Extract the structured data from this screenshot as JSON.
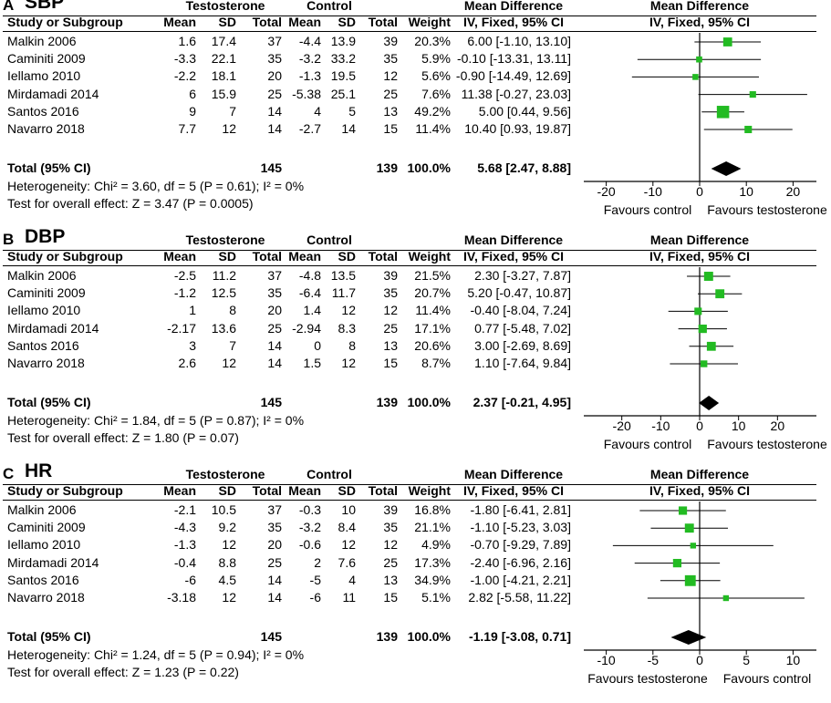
{
  "headers": {
    "study": "Study or Subgroup",
    "mean": "Mean",
    "sd": "SD",
    "total": "Total",
    "weight": "Weight",
    "effect_header": "Mean Difference",
    "method": "IV, Fixed, 95% CI",
    "group1": "Testosterone",
    "group2": "Control"
  },
  "chart_data": [
    {
      "type": "forest",
      "letter": "A",
      "title": "SBP",
      "xlim": [
        -25,
        25
      ],
      "ticks": [
        "-20",
        "-10",
        "0",
        "10",
        "20"
      ],
      "tick_values": [
        -20,
        -10,
        0,
        10,
        20
      ],
      "xlabel_left": "Favours control",
      "xlabel_right": "Favours testosterone",
      "studies": [
        {
          "name": "Malkin 2006",
          "t_mean": "1.6",
          "t_sd": "17.4",
          "t_total": "37",
          "c_mean": "-4.4",
          "c_sd": "13.9",
          "c_total": "39",
          "weight": "20.3%",
          "ci_text": "6.00 [-1.10, 13.10]",
          "md": 6.0,
          "lo": -1.1,
          "hi": 13.1,
          "w": 20.3
        },
        {
          "name": "Caminiti 2009",
          "t_mean": "-3.3",
          "t_sd": "22.1",
          "t_total": "35",
          "c_mean": "-3.2",
          "c_sd": "33.2",
          "c_total": "35",
          "weight": "5.9%",
          "ci_text": "-0.10 [-13.31, 13.11]",
          "md": -0.1,
          "lo": -13.31,
          "hi": 13.11,
          "w": 5.9
        },
        {
          "name": "Iellamo 2010",
          "t_mean": "-2.2",
          "t_sd": "18.1",
          "t_total": "20",
          "c_mean": "-1.3",
          "c_sd": "19.5",
          "c_total": "12",
          "weight": "5.6%",
          "ci_text": "-0.90 [-14.49, 12.69]",
          "md": -0.9,
          "lo": -14.49,
          "hi": 12.69,
          "w": 5.6
        },
        {
          "name": "Mirdamadi 2014",
          "t_mean": "6",
          "t_sd": "15.9",
          "t_total": "25",
          "c_mean": "-5.38",
          "c_sd": "25.1",
          "c_total": "25",
          "weight": "7.6%",
          "ci_text": "11.38 [-0.27, 23.03]",
          "md": 11.38,
          "lo": -0.27,
          "hi": 23.03,
          "w": 7.6
        },
        {
          "name": "Santos 2016",
          "t_mean": "9",
          "t_sd": "7",
          "t_total": "14",
          "c_mean": "4",
          "c_sd": "5",
          "c_total": "13",
          "weight": "49.2%",
          "ci_text": "5.00 [0.44, 9.56]",
          "md": 5.0,
          "lo": 0.44,
          "hi": 9.56,
          "w": 49.2
        },
        {
          "name": "Navarro 2018",
          "t_mean": "7.7",
          "t_sd": "12",
          "t_total": "14",
          "c_mean": "-2.7",
          "c_sd": "14",
          "c_total": "15",
          "weight": "11.4%",
          "ci_text": "10.40 [0.93, 19.87]",
          "md": 10.4,
          "lo": 0.93,
          "hi": 19.87,
          "w": 11.4
        }
      ],
      "total": {
        "label": "Total (95% CI)",
        "t_total": "145",
        "c_total": "139",
        "weight": "100.0%",
        "ci_text": "5.68 [2.47, 8.88]",
        "md": 5.68,
        "lo": 2.47,
        "hi": 8.88
      },
      "heterogeneity": "Heterogeneity: Chi² = 3.60, df = 5 (P = 0.61); I² = 0%",
      "overall": "Test for overall effect: Z = 3.47 (P = 0.0005)"
    },
    {
      "type": "forest",
      "letter": "B",
      "title": "DBP",
      "xlim": [
        -30,
        30
      ],
      "ticks": [
        "-20",
        "-10",
        "0",
        "10",
        "20"
      ],
      "tick_values": [
        -20,
        -10,
        0,
        10,
        20
      ],
      "xlabel_left": "Favours control",
      "xlabel_right": "Favours testosterone",
      "studies": [
        {
          "name": "Malkin 2006",
          "t_mean": "-2.5",
          "t_sd": "11.2",
          "t_total": "37",
          "c_mean": "-4.8",
          "c_sd": "13.5",
          "c_total": "39",
          "weight": "21.5%",
          "ci_text": "2.30 [-3.27, 7.87]",
          "md": 2.3,
          "lo": -3.27,
          "hi": 7.87,
          "w": 21.5
        },
        {
          "name": "Caminiti 2009",
          "t_mean": "-1.2",
          "t_sd": "12.5",
          "t_total": "35",
          "c_mean": "-6.4",
          "c_sd": "11.7",
          "c_total": "35",
          "weight": "20.7%",
          "ci_text": "5.20 [-0.47, 10.87]",
          "md": 5.2,
          "lo": -0.47,
          "hi": 10.87,
          "w": 20.7
        },
        {
          "name": "Iellamo 2010",
          "t_mean": "1",
          "t_sd": "8",
          "t_total": "20",
          "c_mean": "1.4",
          "c_sd": "12",
          "c_total": "12",
          "weight": "11.4%",
          "ci_text": "-0.40 [-8.04, 7.24]",
          "md": -0.4,
          "lo": -8.04,
          "hi": 7.24,
          "w": 11.4
        },
        {
          "name": "Mirdamadi 2014",
          "t_mean": "-2.17",
          "t_sd": "13.6",
          "t_total": "25",
          "c_mean": "-2.94",
          "c_sd": "8.3",
          "c_total": "25",
          "weight": "17.1%",
          "ci_text": "0.77 [-5.48, 7.02]",
          "md": 0.77,
          "lo": -5.48,
          "hi": 7.02,
          "w": 17.1
        },
        {
          "name": "Santos 2016",
          "t_mean": "3",
          "t_sd": "7",
          "t_total": "14",
          "c_mean": "0",
          "c_sd": "8",
          "c_total": "13",
          "weight": "20.6%",
          "ci_text": "3.00 [-2.69, 8.69]",
          "md": 3.0,
          "lo": -2.69,
          "hi": 8.69,
          "w": 20.6
        },
        {
          "name": "Navarro 2018",
          "t_mean": "2.6",
          "t_sd": "12",
          "t_total": "14",
          "c_mean": "1.5",
          "c_sd": "12",
          "c_total": "15",
          "weight": "8.7%",
          "ci_text": "1.10 [-7.64, 9.84]",
          "md": 1.1,
          "lo": -7.64,
          "hi": 9.84,
          "w": 8.7
        }
      ],
      "total": {
        "label": "Total (95% CI)",
        "t_total": "145",
        "c_total": "139",
        "weight": "100.0%",
        "ci_text": "2.37 [-0.21, 4.95]",
        "md": 2.37,
        "lo": -0.21,
        "hi": 4.95
      },
      "heterogeneity": "Heterogeneity: Chi² = 1.84, df = 5 (P = 0.87); I² = 0%",
      "overall": "Test for overall effect: Z = 1.80 (P = 0.07)"
    },
    {
      "type": "forest",
      "letter": "C",
      "title": "HR",
      "xlim": [
        -12.5,
        12.5
      ],
      "ticks": [
        "-10",
        "-5",
        "0",
        "5",
        "10"
      ],
      "tick_values": [
        -10,
        -5,
        0,
        5,
        10
      ],
      "xlabel_left": "Favours testosterone",
      "xlabel_right": "Favours control",
      "studies": [
        {
          "name": "Malkin 2006",
          "t_mean": "-2.1",
          "t_sd": "10.5",
          "t_total": "37",
          "c_mean": "-0.3",
          "c_sd": "10",
          "c_total": "39",
          "weight": "16.8%",
          "ci_text": "-1.80 [-6.41, 2.81]",
          "md": -1.8,
          "lo": -6.41,
          "hi": 2.81,
          "w": 16.8
        },
        {
          "name": "Caminiti 2009",
          "t_mean": "-4.3",
          "t_sd": "9.2",
          "t_total": "35",
          "c_mean": "-3.2",
          "c_sd": "8.4",
          "c_total": "35",
          "weight": "21.1%",
          "ci_text": "-1.10 [-5.23, 3.03]",
          "md": -1.1,
          "lo": -5.23,
          "hi": 3.03,
          "w": 21.1
        },
        {
          "name": "Iellamo 2010",
          "t_mean": "-1.3",
          "t_sd": "12",
          "t_total": "20",
          "c_mean": "-0.6",
          "c_sd": "12",
          "c_total": "12",
          "weight": "4.9%",
          "ci_text": "-0.70 [-9.29, 7.89]",
          "md": -0.7,
          "lo": -9.29,
          "hi": 7.89,
          "w": 4.9
        },
        {
          "name": "Mirdamadi 2014",
          "t_mean": "-0.4",
          "t_sd": "8.8",
          "t_total": "25",
          "c_mean": "2",
          "c_sd": "7.6",
          "c_total": "25",
          "weight": "17.3%",
          "ci_text": "-2.40 [-6.96, 2.16]",
          "md": -2.4,
          "lo": -6.96,
          "hi": 2.16,
          "w": 17.3
        },
        {
          "name": "Santos 2016",
          "t_mean": "-6",
          "t_sd": "4.5",
          "t_total": "14",
          "c_mean": "-5",
          "c_sd": "4",
          "c_total": "13",
          "weight": "34.9%",
          "ci_text": "-1.00 [-4.21, 2.21]",
          "md": -1.0,
          "lo": -4.21,
          "hi": 2.21,
          "w": 34.9
        },
        {
          "name": "Navarro 2018",
          "t_mean": "-3.18",
          "t_sd": "12",
          "t_total": "14",
          "c_mean": "-6",
          "c_sd": "11",
          "c_total": "15",
          "weight": "5.1%",
          "ci_text": "2.82 [-5.58, 11.22]",
          "md": 2.82,
          "lo": -5.58,
          "hi": 11.22,
          "w": 5.1
        }
      ],
      "total": {
        "label": "Total (95% CI)",
        "t_total": "145",
        "c_total": "139",
        "weight": "100.0%",
        "ci_text": "-1.19 [-3.08, 0.71]",
        "md": -1.19,
        "lo": -3.08,
        "hi": 0.71
      },
      "heterogeneity": "Heterogeneity: Chi² = 1.24, df = 5 (P = 0.94); I² = 0%",
      "overall": "Test for overall effect: Z = 1.23 (P = 0.22)"
    }
  ],
  "colors": {
    "marker": "#22bb22",
    "diamond": "#000000",
    "line": "#000000"
  }
}
